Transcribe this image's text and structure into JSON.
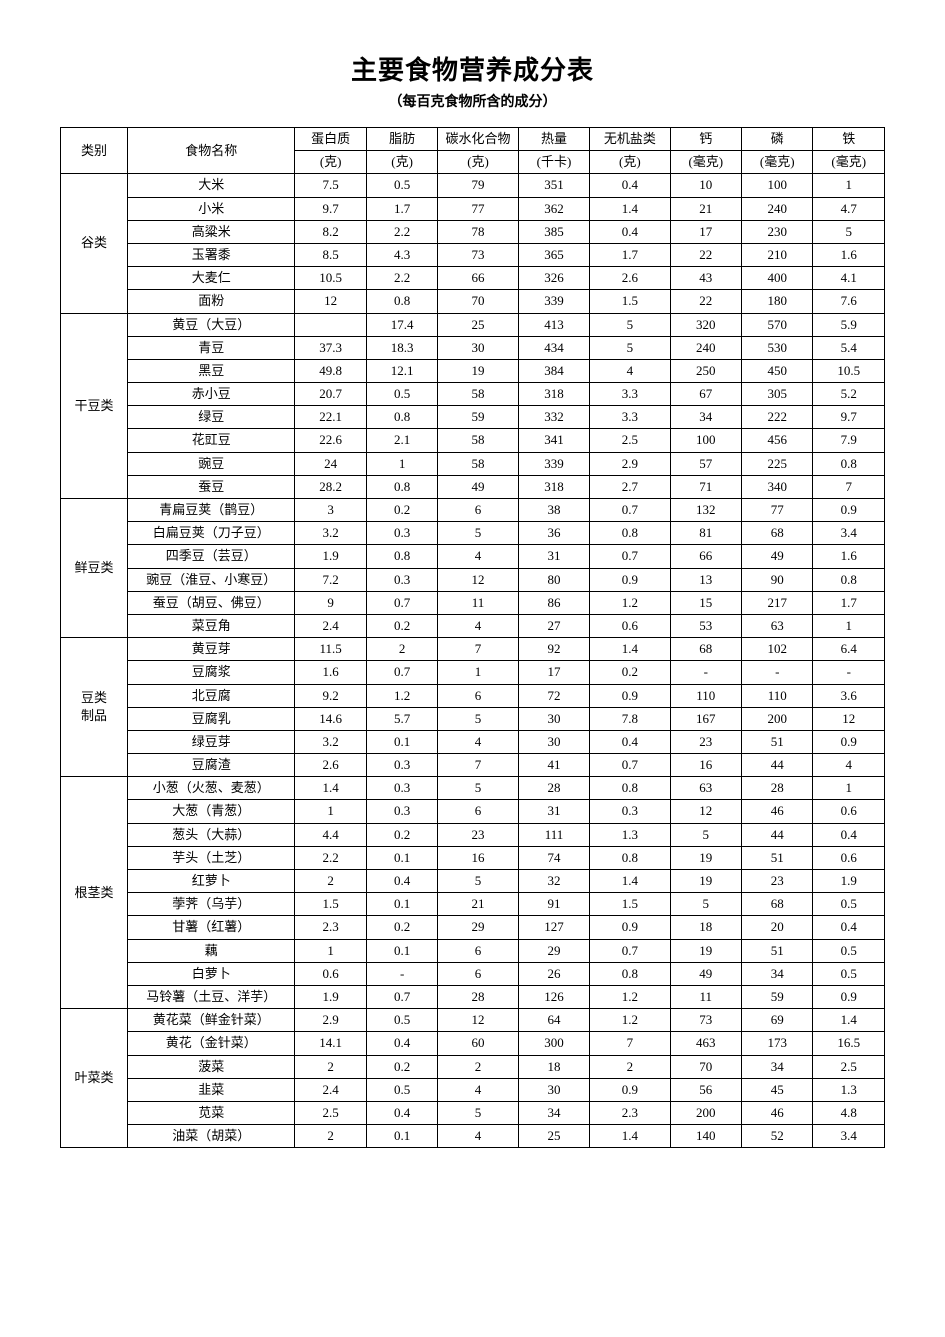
{
  "title": "主要食物营养成分表",
  "subtitle": "（每百克食物所含的成分）",
  "headers": {
    "category": "类别",
    "name": "食物名称",
    "protein": "蛋白质",
    "protein_unit": "(克)",
    "fat": "脂肪",
    "fat_unit": "(克)",
    "carb": "碳水化合物",
    "carb_unit": "(克)",
    "calorie": "热量",
    "calorie_unit": "(千卡)",
    "mineral": "无机盐类",
    "mineral_unit": "(克)",
    "calcium": "钙",
    "calcium_unit": "(毫克)",
    "phosphorus": "磷",
    "phosphorus_unit": "(毫克)",
    "iron": "铁",
    "iron_unit": "(毫克)"
  },
  "categories": [
    {
      "label": "谷类",
      "rows": [
        {
          "name": "大米",
          "protein": "7.5",
          "fat": "0.5",
          "carb": "79",
          "cal": "351",
          "min": "0.4",
          "ca": "10",
          "p": "100",
          "fe": "1"
        },
        {
          "name": "小米",
          "protein": "9.7",
          "fat": "1.7",
          "carb": "77",
          "cal": "362",
          "min": "1.4",
          "ca": "21",
          "p": "240",
          "fe": "4.7"
        },
        {
          "name": "高粱米",
          "protein": "8.2",
          "fat": "2.2",
          "carb": "78",
          "cal": "385",
          "min": "0.4",
          "ca": "17",
          "p": "230",
          "fe": "5"
        },
        {
          "name": "玉署黍",
          "protein": "8.5",
          "fat": "4.3",
          "carb": "73",
          "cal": "365",
          "min": "1.7",
          "ca": "22",
          "p": "210",
          "fe": "1.6"
        },
        {
          "name": "大麦仁",
          "protein": "10.5",
          "fat": "2.2",
          "carb": "66",
          "cal": "326",
          "min": "2.6",
          "ca": "43",
          "p": "400",
          "fe": "4.1"
        },
        {
          "name": "面粉",
          "protein": "12",
          "fat": "0.8",
          "carb": "70",
          "cal": "339",
          "min": "1.5",
          "ca": "22",
          "p": "180",
          "fe": "7.6"
        }
      ]
    },
    {
      "label": "干豆类",
      "rows": [
        {
          "name": "黄豆（大豆）",
          "protein": "",
          "fat": "17.4",
          "carb": "25",
          "cal": "413",
          "min": "5",
          "ca": "320",
          "p": "570",
          "fe": "5.9"
        },
        {
          "name": "青豆",
          "protein": "37.3",
          "fat": "18.3",
          "carb": "30",
          "cal": "434",
          "min": "5",
          "ca": "240",
          "p": "530",
          "fe": "5.4"
        },
        {
          "name": "黑豆",
          "protein": "49.8",
          "fat": "12.1",
          "carb": "19",
          "cal": "384",
          "min": "4",
          "ca": "250",
          "p": "450",
          "fe": "10.5"
        },
        {
          "name": "赤小豆",
          "protein": "20.7",
          "fat": "0.5",
          "carb": "58",
          "cal": "318",
          "min": "3.3",
          "ca": "67",
          "p": "305",
          "fe": "5.2"
        },
        {
          "name": "绿豆",
          "protein": "22.1",
          "fat": "0.8",
          "carb": "59",
          "cal": "332",
          "min": "3.3",
          "ca": "34",
          "p": "222",
          "fe": "9.7"
        },
        {
          "name": "花豇豆",
          "protein": "22.6",
          "fat": "2.1",
          "carb": "58",
          "cal": "341",
          "min": "2.5",
          "ca": "100",
          "p": "456",
          "fe": "7.9"
        },
        {
          "name": "豌豆",
          "protein": "24",
          "fat": "1",
          "carb": "58",
          "cal": "339",
          "min": "2.9",
          "ca": "57",
          "p": "225",
          "fe": "0.8"
        },
        {
          "name": "蚕豆",
          "protein": "28.2",
          "fat": "0.8",
          "carb": "49",
          "cal": "318",
          "min": "2.7",
          "ca": "71",
          "p": "340",
          "fe": "7"
        }
      ]
    },
    {
      "label": "鲜豆类",
      "rows": [
        {
          "name": "青扁豆荚（鹊豆）",
          "protein": "3",
          "fat": "0.2",
          "carb": "6",
          "cal": "38",
          "min": "0.7",
          "ca": "132",
          "p": "77",
          "fe": "0.9"
        },
        {
          "name": "白扁豆荚（刀子豆）",
          "protein": "3.2",
          "fat": "0.3",
          "carb": "5",
          "cal": "36",
          "min": "0.8",
          "ca": "81",
          "p": "68",
          "fe": "3.4"
        },
        {
          "name": "四季豆（芸豆）",
          "protein": "1.9",
          "fat": "0.8",
          "carb": "4",
          "cal": "31",
          "min": "0.7",
          "ca": "66",
          "p": "49",
          "fe": "1.6"
        },
        {
          "name": "豌豆（淮豆、小寒豆）",
          "protein": "7.2",
          "fat": "0.3",
          "carb": "12",
          "cal": "80",
          "min": "0.9",
          "ca": "13",
          "p": "90",
          "fe": "0.8"
        },
        {
          "name": "蚕豆（胡豆、佛豆）",
          "protein": "9",
          "fat": "0.7",
          "carb": "11",
          "cal": "86",
          "min": "1.2",
          "ca": "15",
          "p": "217",
          "fe": "1.7"
        },
        {
          "name": "菜豆角",
          "protein": "2.4",
          "fat": "0.2",
          "carb": "4",
          "cal": "27",
          "min": "0.6",
          "ca": "53",
          "p": "63",
          "fe": "1"
        }
      ]
    },
    {
      "label": "豆类\n制品",
      "rows": [
        {
          "name": "黄豆芽",
          "protein": "11.5",
          "fat": "2",
          "carb": "7",
          "cal": "92",
          "min": "1.4",
          "ca": "68",
          "p": "102",
          "fe": "6.4"
        },
        {
          "name": "豆腐浆",
          "protein": "1.6",
          "fat": "0.7",
          "carb": "1",
          "cal": "17",
          "min": "0.2",
          "ca": "-",
          "p": "-",
          "fe": "-"
        },
        {
          "name": "北豆腐",
          "protein": "9.2",
          "fat": "1.2",
          "carb": "6",
          "cal": "72",
          "min": "0.9",
          "ca": "110",
          "p": "110",
          "fe": "3.6"
        },
        {
          "name": "豆腐乳",
          "protein": "14.6",
          "fat": "5.7",
          "carb": "5",
          "cal": "30",
          "min": "7.8",
          "ca": "167",
          "p": "200",
          "fe": "12"
        },
        {
          "name": "绿豆芽",
          "protein": "3.2",
          "fat": "0.1",
          "carb": "4",
          "cal": "30",
          "min": "0.4",
          "ca": "23",
          "p": "51",
          "fe": "0.9"
        },
        {
          "name": "豆腐渣",
          "protein": "2.6",
          "fat": "0.3",
          "carb": "7",
          "cal": "41",
          "min": "0.7",
          "ca": "16",
          "p": "44",
          "fe": "4"
        }
      ]
    },
    {
      "label": "根茎类",
      "rows": [
        {
          "name": "小葱（火葱、麦葱）",
          "protein": "1.4",
          "fat": "0.3",
          "carb": "5",
          "cal": "28",
          "min": "0.8",
          "ca": "63",
          "p": "28",
          "fe": "1"
        },
        {
          "name": "大葱（青葱）",
          "protein": "1",
          "fat": "0.3",
          "carb": "6",
          "cal": "31",
          "min": "0.3",
          "ca": "12",
          "p": "46",
          "fe": "0.6"
        },
        {
          "name": "葱头（大蒜）",
          "protein": "4.4",
          "fat": "0.2",
          "carb": "23",
          "cal": "111",
          "min": "1.3",
          "ca": "5",
          "p": "44",
          "fe": "0.4"
        },
        {
          "name": "芋头（土芝）",
          "protein": "2.2",
          "fat": "0.1",
          "carb": "16",
          "cal": "74",
          "min": "0.8",
          "ca": "19",
          "p": "51",
          "fe": "0.6"
        },
        {
          "name": "红萝卜",
          "protein": "2",
          "fat": "0.4",
          "carb": "5",
          "cal": "32",
          "min": "1.4",
          "ca": "19",
          "p": "23",
          "fe": "1.9"
        },
        {
          "name": "荸荠（乌芋）",
          "protein": "1.5",
          "fat": "0.1",
          "carb": "21",
          "cal": "91",
          "min": "1.5",
          "ca": "5",
          "p": "68",
          "fe": "0.5"
        },
        {
          "name": "甘薯（红薯）",
          "protein": "2.3",
          "fat": "0.2",
          "carb": "29",
          "cal": "127",
          "min": "0.9",
          "ca": "18",
          "p": "20",
          "fe": "0.4"
        },
        {
          "name": "藕",
          "protein": "1",
          "fat": "0.1",
          "carb": "6",
          "cal": "29",
          "min": "0.7",
          "ca": "19",
          "p": "51",
          "fe": "0.5"
        },
        {
          "name": "白萝卜",
          "protein": "0.6",
          "fat": "-",
          "carb": "6",
          "cal": "26",
          "min": "0.8",
          "ca": "49",
          "p": "34",
          "fe": "0.5"
        },
        {
          "name": "马铃薯（土豆、洋芋）",
          "protein": "1.9",
          "fat": "0.7",
          "carb": "28",
          "cal": "126",
          "min": "1.2",
          "ca": "11",
          "p": "59",
          "fe": "0.9"
        }
      ]
    },
    {
      "label": "叶菜类",
      "rows": [
        {
          "name": "黄花菜（鲜金针菜）",
          "protein": "2.9",
          "fat": "0.5",
          "carb": "12",
          "cal": "64",
          "min": "1.2",
          "ca": "73",
          "p": "69",
          "fe": "1.4"
        },
        {
          "name": "黄花（金针菜）",
          "protein": "14.1",
          "fat": "0.4",
          "carb": "60",
          "cal": "300",
          "min": "7",
          "ca": "463",
          "p": "173",
          "fe": "16.5"
        },
        {
          "name": "菠菜",
          "protein": "2",
          "fat": "0.2",
          "carb": "2",
          "cal": "18",
          "min": "2",
          "ca": "70",
          "p": "34",
          "fe": "2.5"
        },
        {
          "name": "韭菜",
          "protein": "2.4",
          "fat": "0.5",
          "carb": "4",
          "cal": "30",
          "min": "0.9",
          "ca": "56",
          "p": "45",
          "fe": "1.3"
        },
        {
          "name": "苋菜",
          "protein": "2.5",
          "fat": "0.4",
          "carb": "5",
          "cal": "34",
          "min": "2.3",
          "ca": "200",
          "p": "46",
          "fe": "4.8"
        },
        {
          "name": "油菜（胡菜）",
          "protein": "2",
          "fat": "0.1",
          "carb": "4",
          "cal": "25",
          "min": "1.4",
          "ca": "140",
          "p": "52",
          "fe": "3.4"
        }
      ]
    }
  ],
  "style": {
    "background_color": "#ffffff",
    "border_color": "#000000",
    "title_fontsize": 26,
    "subtitle_fontsize": 14,
    "cell_fontsize": 13,
    "font_family": "SimSun"
  }
}
